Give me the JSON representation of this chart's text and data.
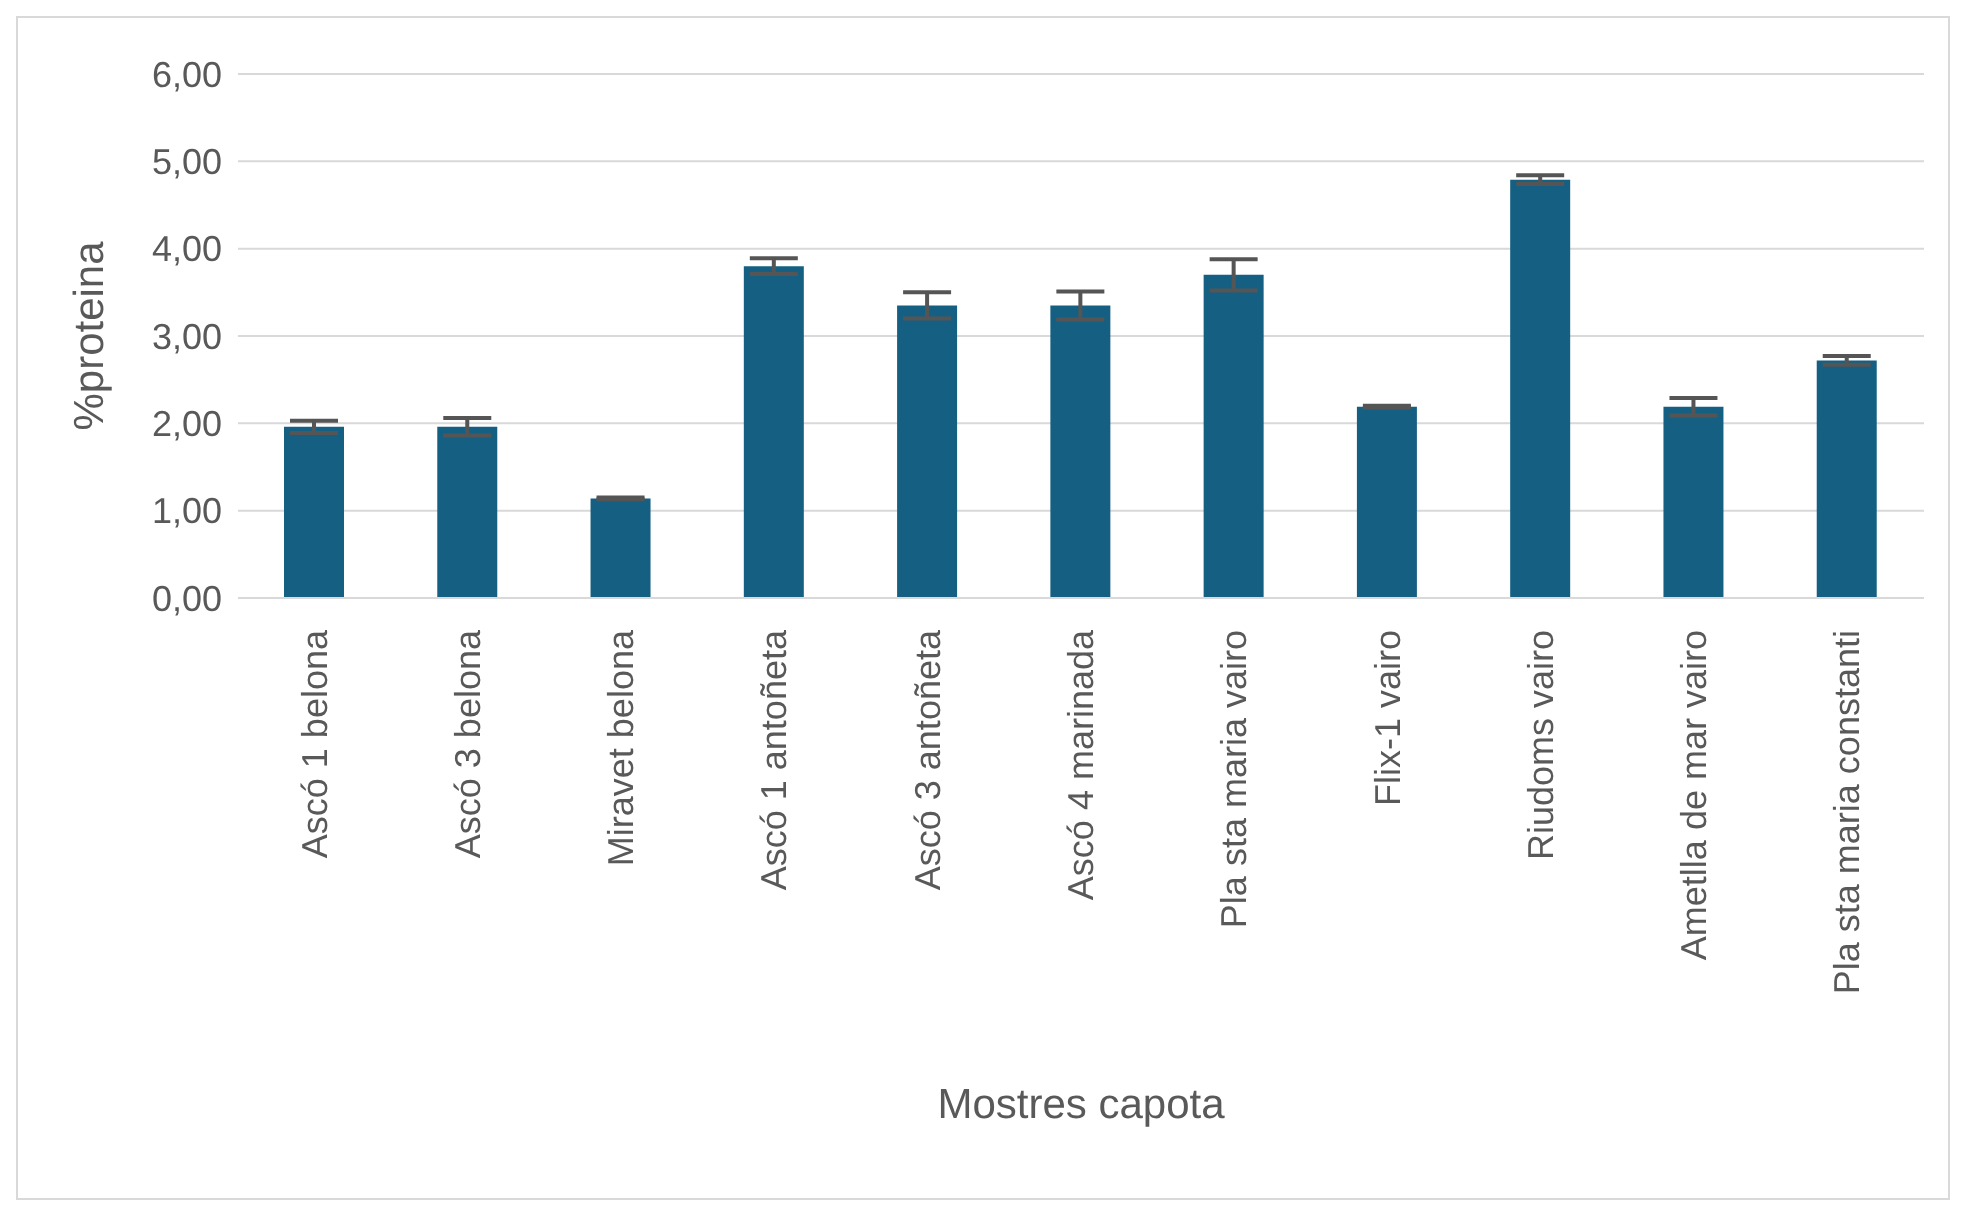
{
  "chart_data": {
    "type": "bar",
    "xlabel": "Mostres capota",
    "ylabel": "%proteina",
    "categories": [
      "Ascó 1 belona",
      "Ascó 3 belona",
      "Miravet belona",
      "Ascó 1 antoñeta",
      "Ascó 3 antoñeta",
      "Ascó 4 marinada",
      "Pla sta maria vairo",
      "Flix-1 vairo",
      "Riudoms vairo",
      "Ametlla de mar vairo",
      "Pla sta maria constanti"
    ],
    "values": [
      1.96,
      1.96,
      1.14,
      3.8,
      3.35,
      3.35,
      3.7,
      2.19,
      4.79,
      2.19,
      2.72
    ],
    "errors": [
      0.07,
      0.1,
      0.01,
      0.09,
      0.15,
      0.16,
      0.18,
      0.01,
      0.05,
      0.1,
      0.05
    ],
    "color": "#156082",
    "ylim": [
      0,
      6
    ],
    "yticks": [
      {
        "value": 0,
        "label": "0,00"
      },
      {
        "value": 1,
        "label": "1,00"
      },
      {
        "value": 2,
        "label": "2,00"
      },
      {
        "value": 3,
        "label": "3,00"
      },
      {
        "value": 4,
        "label": "4,00"
      },
      {
        "value": 5,
        "label": "5,00"
      },
      {
        "value": 6,
        "label": "6,00"
      }
    ],
    "grid": "y",
    "legend": false
  }
}
